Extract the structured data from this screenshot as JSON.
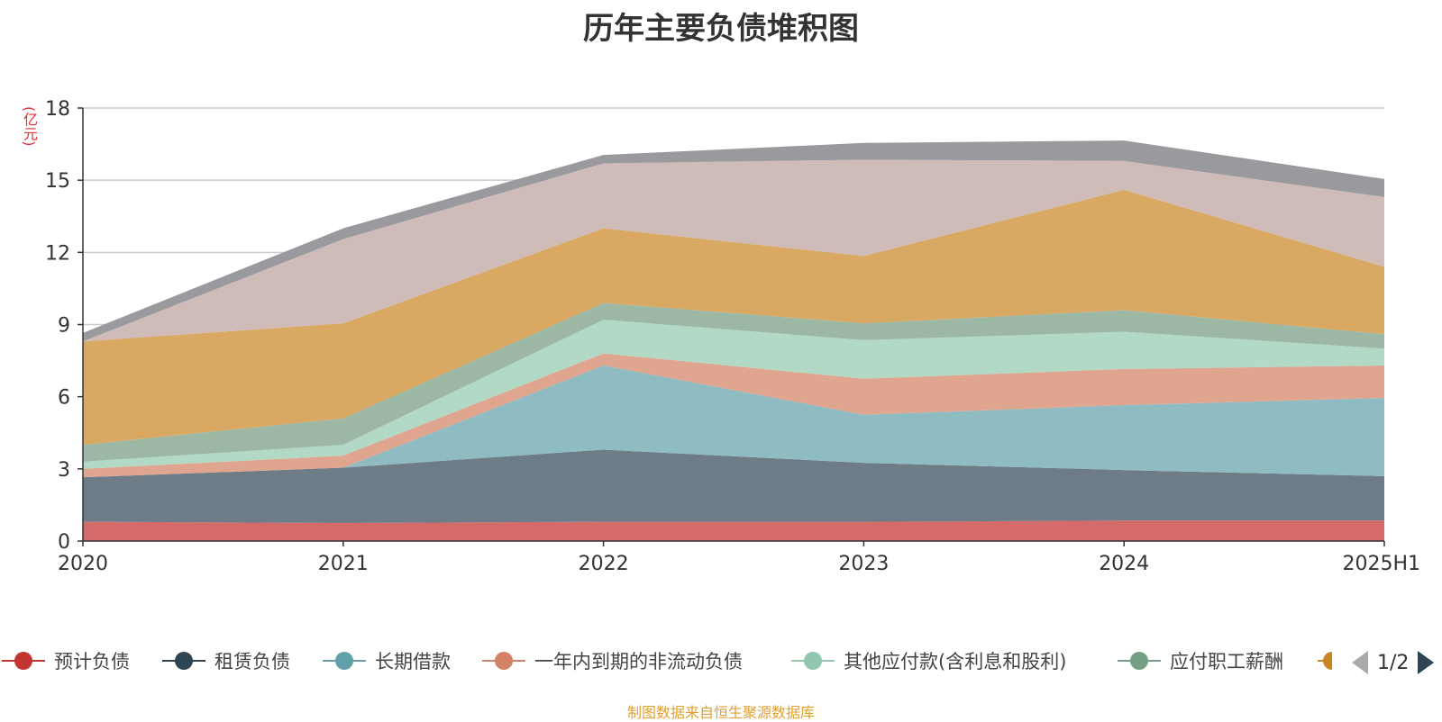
{
  "title": "历年主要负债堆积图",
  "unit": "(亿元)",
  "source": "制图数据来自恒生聚源数据库",
  "pager": "1/2",
  "legend_visible": [
    {
      "name": "预计负债",
      "color": "#c23531"
    },
    {
      "name": "租赁负债",
      "color": "#2f4554"
    },
    {
      "name": "长期借款",
      "color": "#61a0a8"
    },
    {
      "name": "一年内到期的非流动负债",
      "color": "#d48265"
    },
    {
      "name": "其他应付款(含利息和股利)",
      "color": "#91c7ae"
    },
    {
      "name": "应付职工薪酬",
      "color": "#749f83"
    }
  ],
  "chart_data": {
    "type": "area",
    "stacked": true,
    "x": [
      "2020",
      "2021",
      "2022",
      "2023",
      "2024",
      "2025H1"
    ],
    "ylim": [
      0,
      18
    ],
    "yticks": [
      "0",
      "3",
      "6",
      "9",
      "12",
      "15",
      "18"
    ],
    "grid": true,
    "series": [
      {
        "name": "预计负债",
        "color": "#d46a6a",
        "values": [
          0.8,
          0.75,
          0.8,
          0.8,
          0.85,
          0.85
        ]
      },
      {
        "name": "租赁负债",
        "color": "#6e7c87",
        "values": [
          1.85,
          2.3,
          3.0,
          2.45,
          2.1,
          1.85
        ]
      },
      {
        "name": "长期借款",
        "color": "#8fbbc2",
        "values": [
          0.0,
          0.0,
          3.5,
          2.0,
          2.7,
          3.25
        ]
      },
      {
        "name": "一年内到期的非流动负债",
        "color": "#e0a58f",
        "values": [
          0.35,
          0.5,
          0.5,
          1.5,
          1.5,
          1.35
        ]
      },
      {
        "name": "其他应付款(含利息和股利)",
        "color": "#b1d9c6",
        "values": [
          0.3,
          0.45,
          1.4,
          1.6,
          1.55,
          0.7
        ]
      },
      {
        "name": "应付职工薪酬",
        "color": "#9cb8a4",
        "values": [
          0.7,
          1.1,
          0.7,
          0.7,
          0.9,
          0.6
        ]
      },
      {
        "name": "",
        "color": "#d9a862",
        "values": [
          4.3,
          3.95,
          3.1,
          2.8,
          5.0,
          2.8
        ]
      },
      {
        "name": "",
        "color": "#cfbcb8",
        "values": [
          0.0,
          3.5,
          2.7,
          4.0,
          1.2,
          2.9
        ]
      },
      {
        "name": "",
        "color": "#9a9a9e",
        "values": [
          0.35,
          0.45,
          0.35,
          0.7,
          0.85,
          0.75
        ]
      }
    ]
  }
}
